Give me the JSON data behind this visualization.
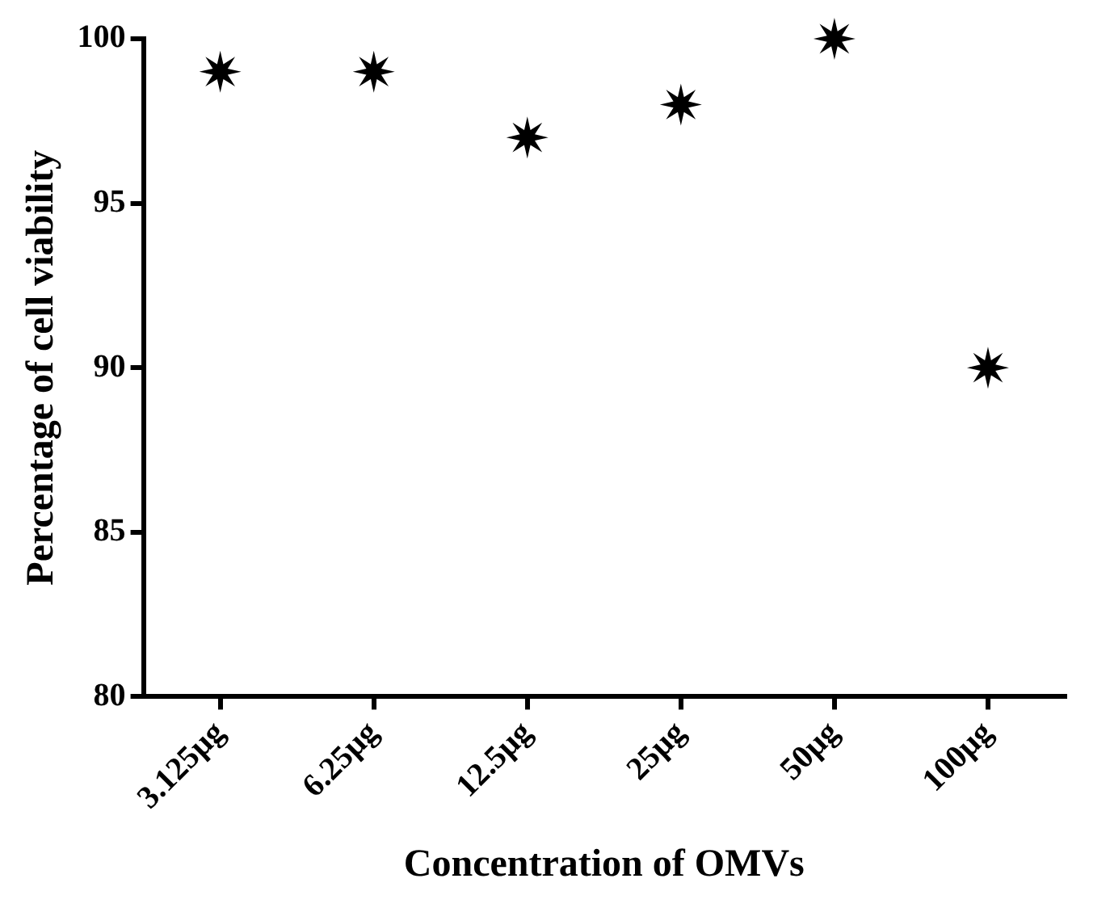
{
  "chart_data": {
    "type": "scatter",
    "xlabel": "Concentration of OMVs",
    "ylabel": "Percentage of cell viability",
    "categories": [
      "3.125µg",
      "6.25µg",
      "12.5µg",
      "25µg",
      "50µg",
      "100µg"
    ],
    "values": [
      99,
      99,
      97,
      98,
      100,
      90
    ],
    "color": "#000000",
    "marker": "star",
    "ylim": [
      80,
      100
    ],
    "yticks": [
      80,
      85,
      90,
      95,
      100
    ],
    "grid": false,
    "legend": false
  }
}
